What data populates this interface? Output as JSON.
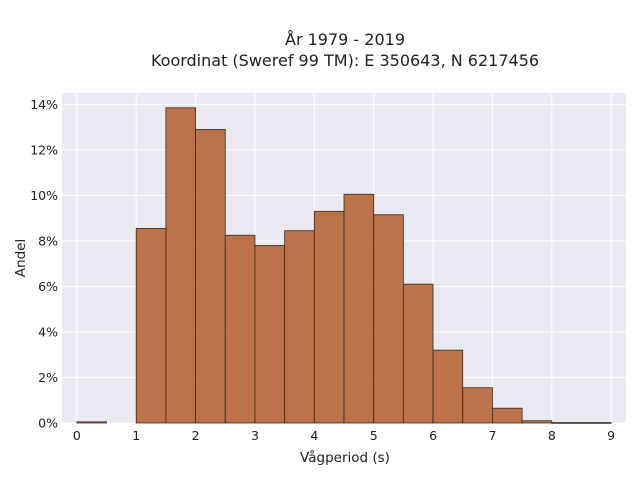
{
  "chart_data": {
    "type": "bar",
    "title_line1": "År 1979 - 2019",
    "title_line2": "Koordinat (Sweref 99 TM): E 350643, N 6217456",
    "xlabel": "Vågperiod (s)",
    "ylabel": "Andel",
    "xlim": [
      -0.25,
      9.25
    ],
    "ylim": [
      0,
      14.5
    ],
    "x_ticks": [
      "0",
      "1",
      "2",
      "3",
      "4",
      "5",
      "6",
      "7",
      "8",
      "9"
    ],
    "y_ticks": [
      "0%",
      "2%",
      "4%",
      "6%",
      "8%",
      "10%",
      "12%",
      "14%"
    ],
    "grid": true,
    "bar_color": "#b8683c",
    "bin_width": 0.5,
    "bins": [
      {
        "start": 0.0,
        "value": 0.05
      },
      {
        "start": 0.5,
        "value": 0.0
      },
      {
        "start": 1.0,
        "value": 8.55
      },
      {
        "start": 1.5,
        "value": 13.85
      },
      {
        "start": 2.0,
        "value": 12.9
      },
      {
        "start": 2.5,
        "value": 8.25
      },
      {
        "start": 3.0,
        "value": 7.8
      },
      {
        "start": 3.5,
        "value": 8.45
      },
      {
        "start": 4.0,
        "value": 9.3
      },
      {
        "start": 4.5,
        "value": 10.05
      },
      {
        "start": 5.0,
        "value": 9.15
      },
      {
        "start": 5.5,
        "value": 6.1
      },
      {
        "start": 6.0,
        "value": 3.2
      },
      {
        "start": 6.5,
        "value": 1.55
      },
      {
        "start": 7.0,
        "value": 0.65
      },
      {
        "start": 7.5,
        "value": 0.1
      },
      {
        "start": 8.0,
        "value": 0.02
      },
      {
        "start": 8.5,
        "value": 0.02
      }
    ]
  }
}
